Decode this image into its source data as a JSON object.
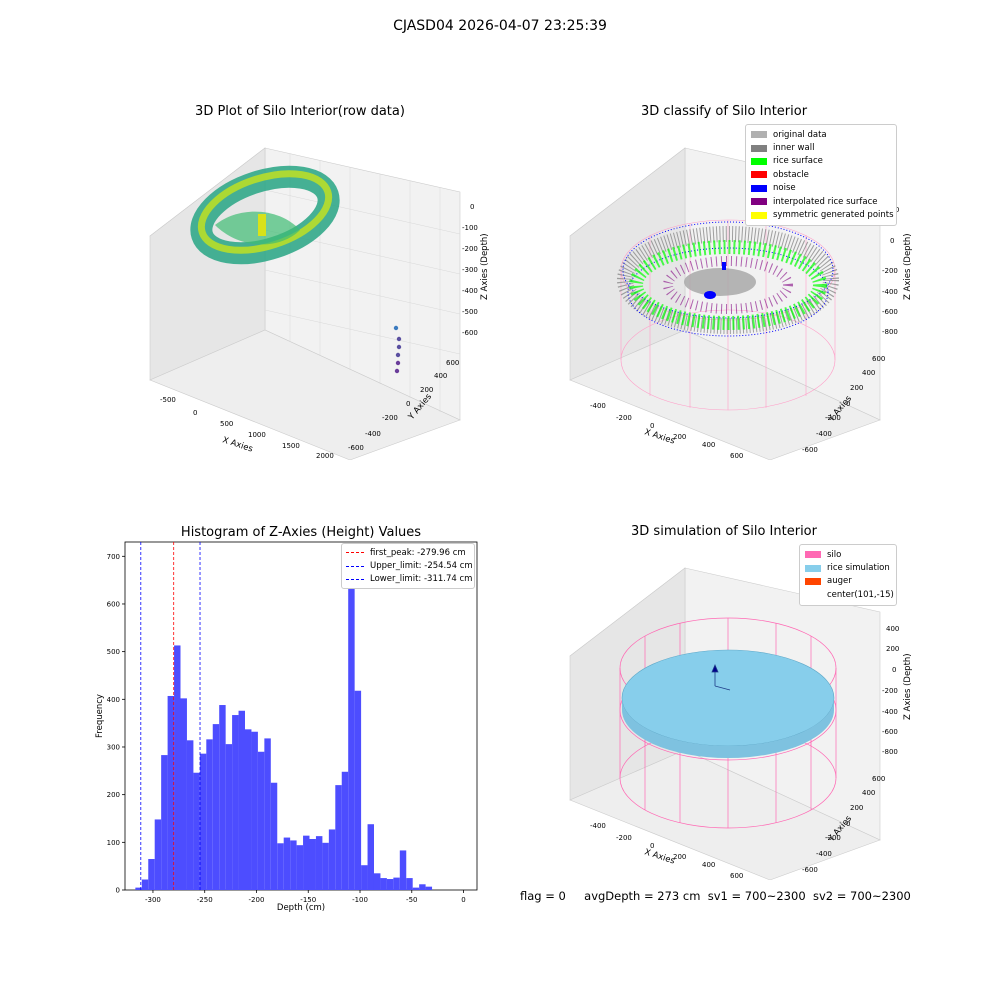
{
  "figure": {
    "suptitle": "CJASD04 2026-04-07 23:25:39"
  },
  "panels": {
    "raw": {
      "title": "3D Plot of Silo Interior(row data)",
      "xlabel": "X Axies",
      "ylabel": "Y Axies",
      "zlabel": "Z Axies (Depth)",
      "xticks": [
        "-500",
        "0",
        "500",
        "1000",
        "1500",
        "2000"
      ],
      "yticks": [
        "-600",
        "-400",
        "-200",
        "0",
        "200",
        "400",
        "600"
      ],
      "zticks": [
        "0",
        "-100",
        "-200",
        "-300",
        "-400",
        "-500",
        "-600"
      ]
    },
    "classify": {
      "title": "3D classify of Silo Interior",
      "xlabel": "X Axies",
      "ylabel": "Y Axies",
      "zlabel": "Z Axies (Depth)",
      "xticks": [
        "-400",
        "-200",
        "0",
        "200",
        "400",
        "600"
      ],
      "yticks": [
        "-600",
        "-400",
        "-200",
        "0",
        "200",
        "400",
        "600"
      ],
      "zticks": [
        "200",
        "0",
        "-200",
        "-400",
        "-600",
        "-800"
      ],
      "legend": [
        {
          "label": "original data",
          "color": "#b0b0b0"
        },
        {
          "label": "inner wall",
          "color": "#808080"
        },
        {
          "label": "rice surface",
          "color": "#00ff00"
        },
        {
          "label": "obstacle",
          "color": "#ff0000"
        },
        {
          "label": "noise",
          "color": "#0000ff"
        },
        {
          "label": "interpolated rice surface",
          "color": "#800080"
        },
        {
          "label": "symmetric generated points",
          "color": "#ffff00"
        }
      ]
    },
    "simulation": {
      "title": "3D simulation of Silo Interior",
      "xlabel": "X Axies",
      "ylabel": "Y Axies",
      "zlabel": "Z Axies (Depth)",
      "xticks": [
        "-400",
        "-200",
        "0",
        "200",
        "400",
        "600"
      ],
      "yticks": [
        "-600",
        "-400",
        "-200",
        "0",
        "200",
        "400",
        "600"
      ],
      "zticks": [
        "400",
        "200",
        "0",
        "-200",
        "-400",
        "-600",
        "-800"
      ],
      "legend": [
        {
          "label": "silo",
          "color": "#ff69b4"
        },
        {
          "label": "rice simulation",
          "color": "#87ceeb"
        },
        {
          "label": "auger",
          "color": "#ff4500"
        },
        {
          "label": "center(101,-15)",
          "color": "#ffffff"
        }
      ]
    }
  },
  "footer": {
    "flag": "flag = 0",
    "avg_depth": "avgDepth = 273 cm",
    "sv1": "sv1 = 700~2300",
    "sv2": "sv2 = 700~2300"
  },
  "chart_data": {
    "type": "bar",
    "title": "Histogram of Z-Axies (Height) Values",
    "xlabel": "Depth (cm)",
    "ylabel": "Frequency",
    "xlim": [
      -327,
      13
    ],
    "ylim": [
      0,
      730
    ],
    "xticks": [
      -300,
      -250,
      -200,
      -150,
      -100,
      -50,
      0
    ],
    "yticks": [
      0,
      100,
      200,
      300,
      400,
      500,
      600,
      700
    ],
    "bar_color": "#4d4dff",
    "bin_width": 6.23,
    "bin_start": -317.0,
    "values": [
      5,
      22,
      65,
      148,
      283,
      407,
      513,
      402,
      314,
      246,
      286,
      316,
      348,
      388,
      306,
      367,
      376,
      337,
      332,
      290,
      318,
      225,
      98,
      110,
      104,
      94,
      114,
      107,
      113,
      99,
      127,
      220,
      248,
      638,
      418,
      52,
      138,
      35,
      25,
      23,
      26,
      83,
      25,
      5,
      12,
      7
    ],
    "lines": [
      {
        "label": "first_peak: -279.96 cm",
        "value": -279.96,
        "color": "#ff0000"
      },
      {
        "label": "Upper_limit: -254.54 cm",
        "value": -254.54,
        "color": "#0000ff"
      },
      {
        "label": "Lower_limit: -311.74 cm",
        "value": -311.74,
        "color": "#0000ff"
      }
    ],
    "legend_position": "top-right"
  }
}
